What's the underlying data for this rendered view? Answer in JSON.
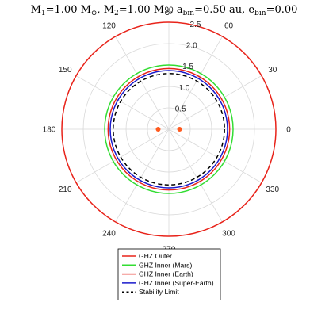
{
  "chart_data": {
    "type": "polar",
    "title": {
      "m1_label": "M",
      "m1_sub": "1",
      "m1_val": "=1.00 M",
      "m1_unit_sub": "⊙",
      "m2_label": ", M",
      "m2_sub": "2",
      "m2_val": "=1.00 M",
      "m2_unit_sub": "⊙",
      "a_label": ", a",
      "a_sub": "bin",
      "a_val": "=0.50 au",
      "e_label": ", e",
      "e_sub": "bin",
      "e_val": "=0.00"
    },
    "angular_ticks": [
      "0",
      "30",
      "60",
      "90",
      "120",
      "150",
      "180",
      "210",
      "240",
      "270",
      "300",
      "330"
    ],
    "angular_tick_degrees": [
      0,
      30,
      60,
      90,
      120,
      150,
      180,
      210,
      240,
      270,
      300,
      330
    ],
    "radial_ticks": [
      0.5,
      1.0,
      1.5,
      2.0,
      2.5
    ],
    "radial_tick_labels": [
      "0.5",
      "1.0",
      "1.5",
      "2.0",
      "2.5"
    ],
    "radial_max": 2.5,
    "grid": true,
    "legend_position": "bottom-center",
    "series": [
      {
        "name": "GHZ Outer",
        "radius": 2.5,
        "color": "#e8231a",
        "dash": "solid"
      },
      {
        "name": "GHZ Inner (Mars)",
        "radius": 1.5,
        "color": "#33dd33",
        "dash": "solid"
      },
      {
        "name": "GHZ Inner (Earth)",
        "radius": 1.42,
        "color": "#e8231a",
        "dash": "solid"
      },
      {
        "name": "GHZ Inner (Super-Earth)",
        "radius": 1.37,
        "color": "#1a1acc",
        "dash": "solid"
      },
      {
        "name": "Stability Limit",
        "radius": 1.3,
        "color": "#000000",
        "dash": "dashed"
      }
    ],
    "stars": [
      {
        "x": -0.25,
        "y": 0.0,
        "color": "#ff5a1f"
      },
      {
        "x": 0.25,
        "y": 0.0,
        "color": "#ff5a1f"
      }
    ]
  }
}
